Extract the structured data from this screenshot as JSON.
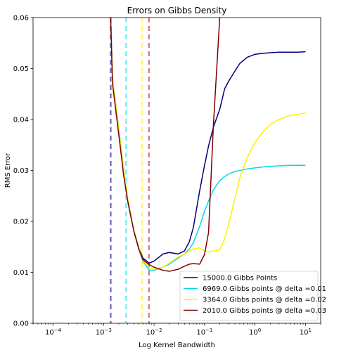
{
  "chart_data": {
    "type": "line",
    "title": "Errors on Gibbs Density",
    "xlabel": "Log Kernel Bandwidth",
    "ylabel": "RMS Error",
    "xscale": "log",
    "xlim": [
      4e-05,
      20
    ],
    "ylim": [
      0,
      0.06
    ],
    "grid": false,
    "legend_position": "lower-right",
    "x_ticks": [
      {
        "value": 0.0001,
        "base": "10",
        "exp": "−4"
      },
      {
        "value": 0.001,
        "base": "10",
        "exp": "−3"
      },
      {
        "value": 0.01,
        "base": "10",
        "exp": "−2"
      },
      {
        "value": 0.1,
        "base": "10",
        "exp": "−1"
      },
      {
        "value": 1,
        "base": "10",
        "exp": "0"
      },
      {
        "value": 10,
        "base": "10",
        "exp": "1"
      }
    ],
    "y_ticks": [
      {
        "value": 0,
        "label": "0.00"
      },
      {
        "value": 0.01,
        "label": "0.01"
      },
      {
        "value": 0.02,
        "label": "0.02"
      },
      {
        "value": 0.03,
        "label": "0.03"
      },
      {
        "value": 0.04,
        "label": "0.04"
      },
      {
        "value": 0.05,
        "label": "0.05"
      },
      {
        "value": 0.06,
        "label": "0.06"
      }
    ],
    "vlines": [
      {
        "x": 0.00138,
        "color": "#00008b"
      },
      {
        "x": 0.0028,
        "color": "#00e5ee"
      },
      {
        "x": 0.0058,
        "color": "#ffee00"
      },
      {
        "x": 0.0079,
        "color": "#b22222"
      }
    ],
    "series": [
      {
        "name": "15000.0 Gibbs Points",
        "color": "#00007f",
        "x": [
          0.00138,
          0.0015,
          0.002,
          0.0025,
          0.003,
          0.004,
          0.005,
          0.006,
          0.008,
          0.01,
          0.015,
          0.02,
          0.03,
          0.04,
          0.05,
          0.06,
          0.08,
          0.1,
          0.12,
          0.15,
          0.2,
          0.25,
          0.3,
          0.4,
          0.5,
          0.7,
          1,
          1.5,
          2,
          3,
          5,
          7,
          10
        ],
        "y": [
          0.06,
          0.048,
          0.038,
          0.03,
          0.024,
          0.018,
          0.0148,
          0.0128,
          0.0118,
          0.0122,
          0.0136,
          0.0139,
          0.0136,
          0.0142,
          0.016,
          0.0188,
          0.026,
          0.031,
          0.0348,
          0.0385,
          0.042,
          0.046,
          0.0475,
          0.0495,
          0.051,
          0.0522,
          0.0528,
          0.053,
          0.0531,
          0.0532,
          0.0532,
          0.0532,
          0.0533
        ]
      },
      {
        "name": "6969.0 Gibbs points @ delta =0.01",
        "color": "#00d7ee",
        "x": [
          0.00138,
          0.0015,
          0.002,
          0.0025,
          0.003,
          0.004,
          0.005,
          0.006,
          0.008,
          0.01,
          0.015,
          0.02,
          0.03,
          0.04,
          0.05,
          0.06,
          0.08,
          0.1,
          0.12,
          0.15,
          0.2,
          0.25,
          0.3,
          0.4,
          0.5,
          0.7,
          1,
          1.5,
          2,
          3,
          5,
          7,
          10
        ],
        "y": [
          0.06,
          0.048,
          0.038,
          0.03,
          0.0245,
          0.018,
          0.0145,
          0.0122,
          0.0104,
          0.0104,
          0.011,
          0.0116,
          0.0128,
          0.0136,
          0.0146,
          0.0158,
          0.019,
          0.022,
          0.024,
          0.0262,
          0.028,
          0.0288,
          0.0293,
          0.0298,
          0.03,
          0.0303,
          0.0305,
          0.0307,
          0.0308,
          0.0309,
          0.031,
          0.031,
          0.031
        ]
      },
      {
        "name": "3364.0 Gibbs points @ delta =0.02",
        "color": "#ffee00",
        "x": [
          0.00138,
          0.0015,
          0.002,
          0.0025,
          0.003,
          0.004,
          0.005,
          0.006,
          0.008,
          0.01,
          0.015,
          0.02,
          0.03,
          0.04,
          0.05,
          0.06,
          0.08,
          0.1,
          0.12,
          0.15,
          0.2,
          0.25,
          0.3,
          0.4,
          0.5,
          0.7,
          1,
          1.5,
          2,
          3,
          5,
          7,
          10
        ],
        "y": [
          0.06,
          0.048,
          0.038,
          0.03,
          0.0245,
          0.018,
          0.0148,
          0.0124,
          0.0108,
          0.0106,
          0.011,
          0.0118,
          0.013,
          0.0136,
          0.0142,
          0.0146,
          0.0148,
          0.0142,
          0.014,
          0.0142,
          0.0144,
          0.0165,
          0.0195,
          0.0245,
          0.0285,
          0.0325,
          0.0355,
          0.0378,
          0.039,
          0.04,
          0.0408,
          0.041,
          0.0413
        ]
      },
      {
        "name": "2010.0 Gibbs points @ delta =0.03",
        "color": "#7f0000",
        "x": [
          0.00138,
          0.0015,
          0.002,
          0.0025,
          0.003,
          0.004,
          0.005,
          0.006,
          0.008,
          0.01,
          0.015,
          0.02,
          0.03,
          0.04,
          0.05,
          0.06,
          0.08,
          0.1,
          0.12,
          0.15,
          0.2
        ],
        "y": [
          0.06,
          0.047,
          0.037,
          0.029,
          0.024,
          0.018,
          0.0145,
          0.0125,
          0.0115,
          0.011,
          0.0104,
          0.0102,
          0.0106,
          0.0112,
          0.0116,
          0.0117,
          0.0116,
          0.0135,
          0.0178,
          0.039,
          0.06
        ]
      }
    ]
  }
}
